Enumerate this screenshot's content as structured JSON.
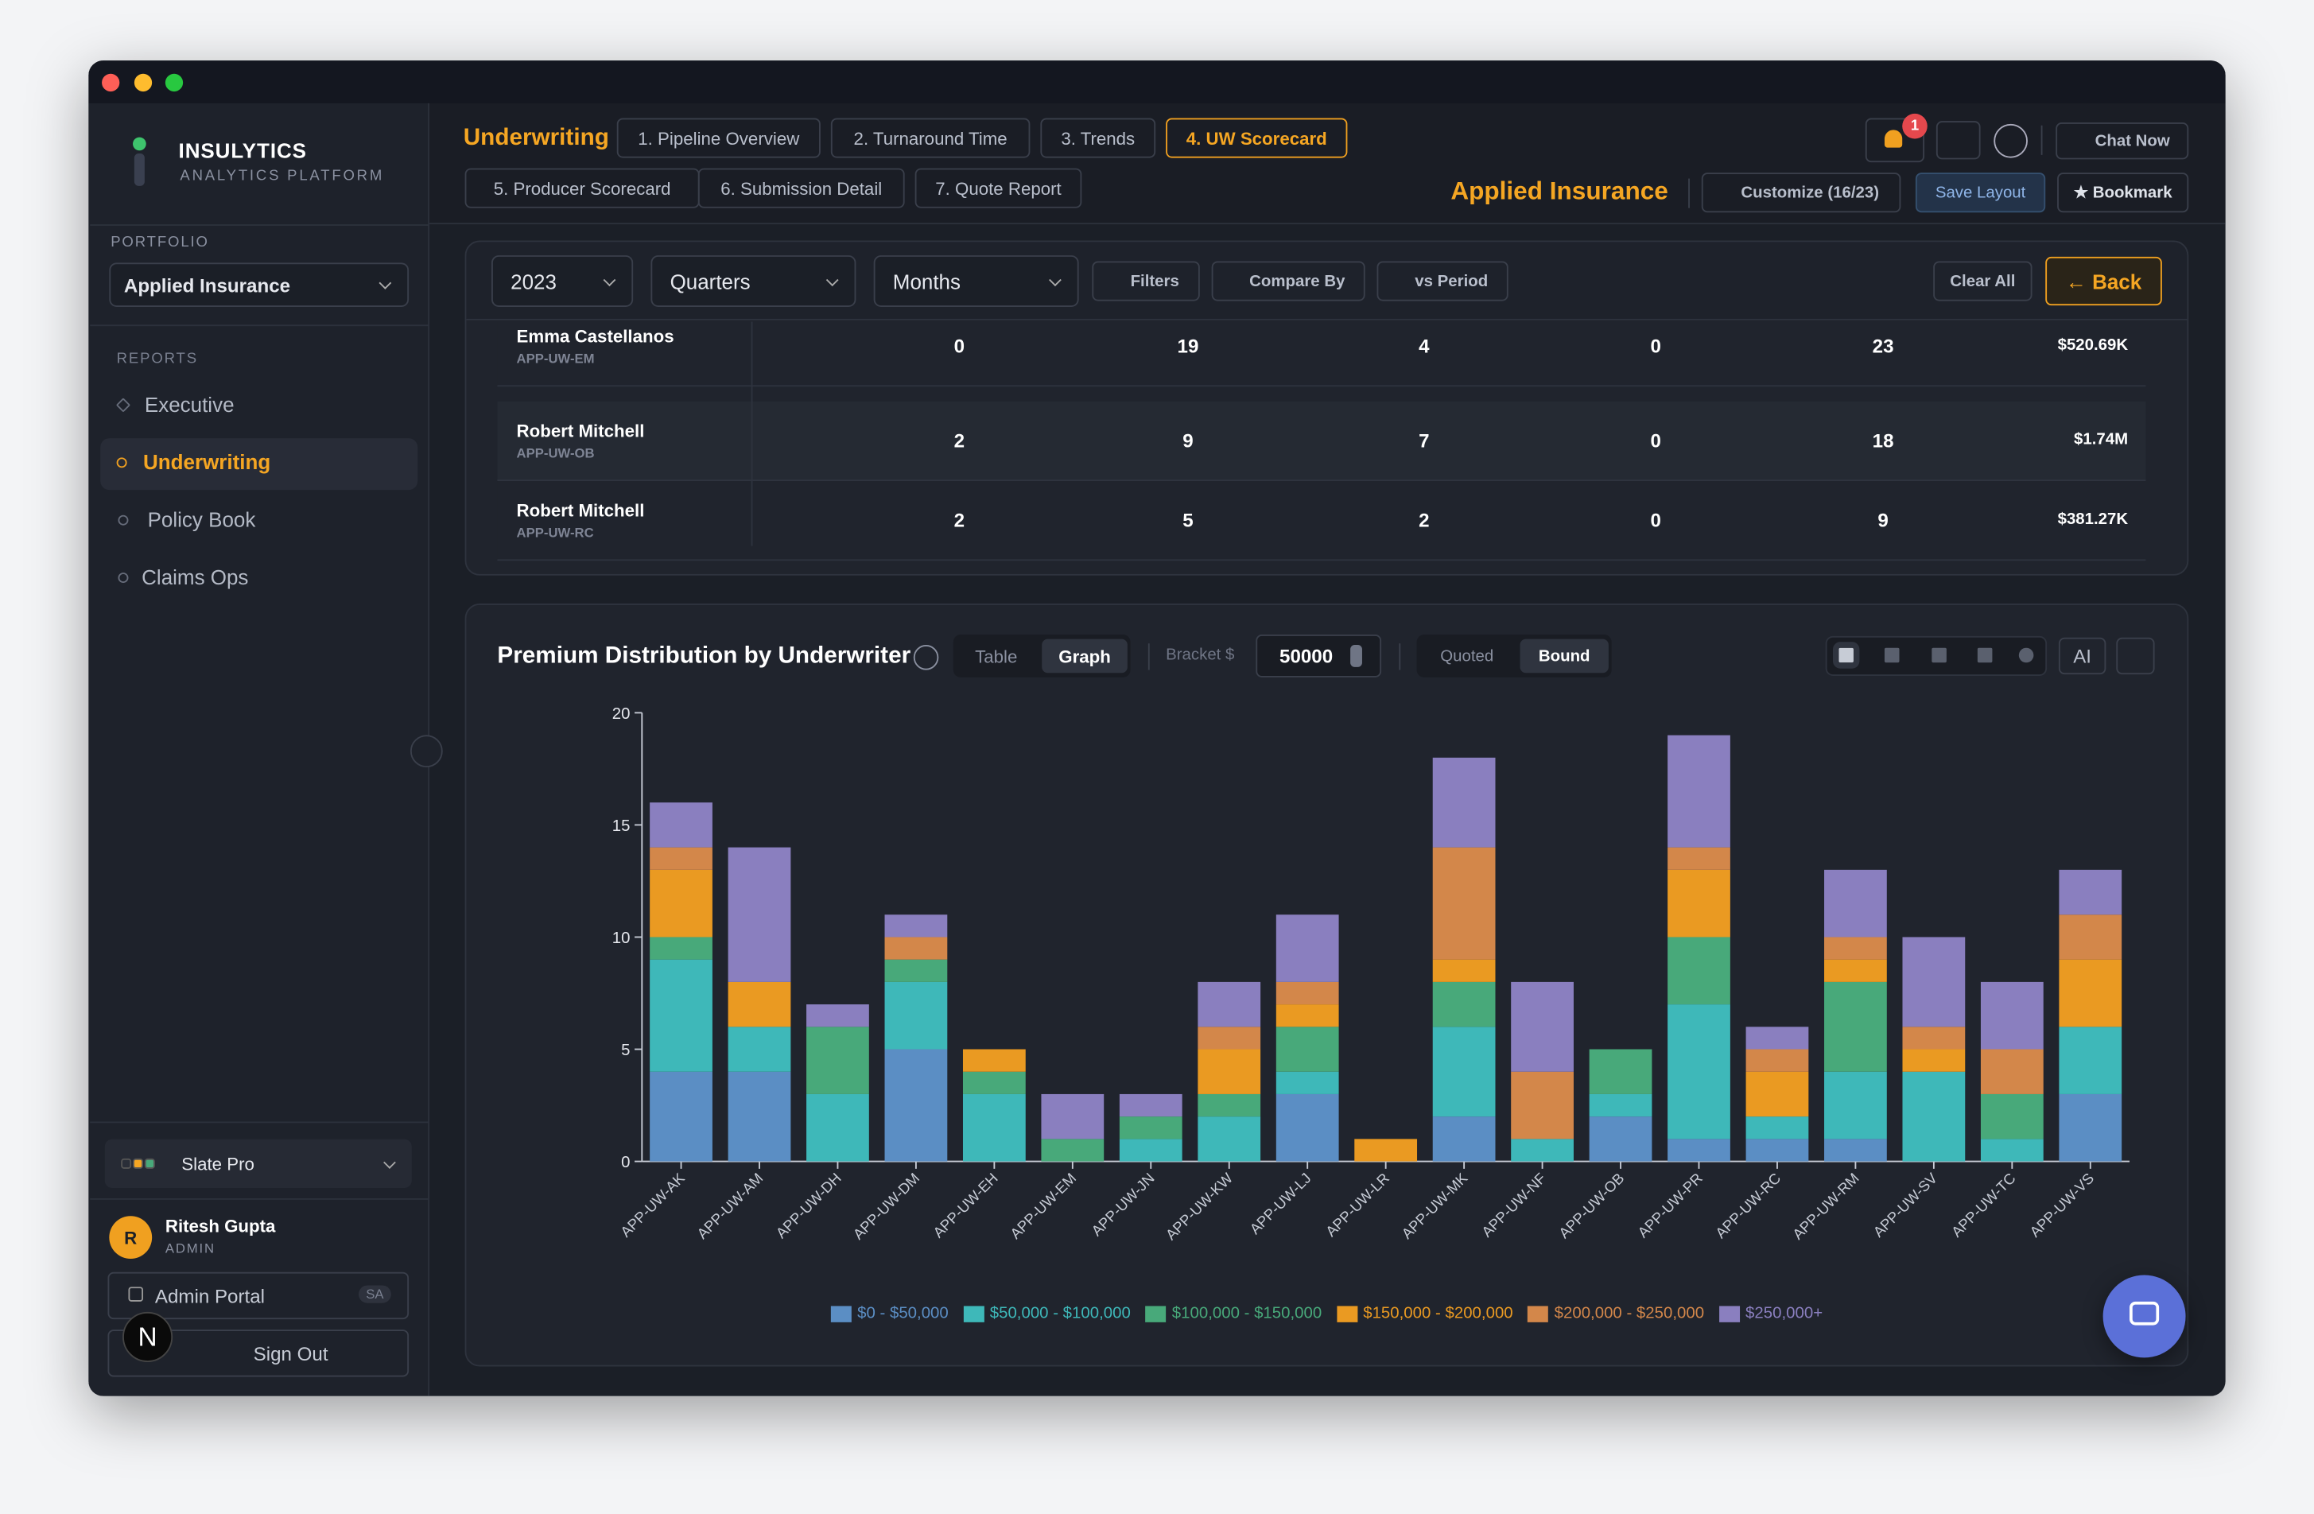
{
  "sidebar": {
    "brand": "INSULYTICS",
    "tagline": "ANALYTICS PLATFORM",
    "portfolio_label": "PORTFOLIO",
    "portfolio": "Applied Insurance",
    "reports_label": "REPORTS",
    "nav": [
      "Executive",
      "Underwriting",
      "Policy Book",
      "Claims Ops"
    ],
    "theme": "Slate Pro",
    "user": {
      "initial": "R",
      "name": "Ritesh Gupta",
      "role": "ADMIN"
    },
    "admin_portal": "Admin Portal",
    "admin_badge": "SA",
    "sign_out": "Sign Out",
    "dev_badge": "N"
  },
  "header": {
    "section": "Underwriting",
    "tabs": [
      "1. Pipeline Overview",
      "2. Turnaround Time",
      "3. Trends",
      "4. UW Scorecard",
      "5. Producer Scorecard",
      "6. Submission Detail",
      "7. Quote Report"
    ],
    "notifications": 1,
    "chat": "Chat Now",
    "company": "Applied Insurance",
    "customize": "Customize (16/23)",
    "save": "Save Layout",
    "bookmark": "★ Bookmark"
  },
  "filters": {
    "year": "2023",
    "period": "Quarters",
    "granularity": "Months",
    "filters": "Filters",
    "compare": "Compare By",
    "vs": "vs Period",
    "clear": "Clear All",
    "back": "← Back"
  },
  "table": {
    "rows": [
      [
        "Emma Castellanos",
        "APP-UW-EM",
        0,
        19,
        4,
        0,
        23,
        "$520.69K"
      ],
      [
        "Robert Mitchell",
        "APP-UW-OB",
        2,
        9,
        7,
        0,
        18,
        "$1.74M"
      ],
      [
        "Robert Mitchell",
        "APP-UW-RC",
        2,
        5,
        2,
        0,
        9,
        "$381.27K"
      ]
    ]
  },
  "panel": {
    "title": "Premium Distribution by Underwriter",
    "view_toggle": [
      "Table",
      "Graph"
    ],
    "bracket_label": "Bracket $",
    "bracket": 50000,
    "mode_toggle": [
      "Quoted",
      "Bound"
    ],
    "ai": "AI"
  },
  "chart_data": {
    "type": "bar",
    "stacked": true,
    "categories": [
      "APP-UW-AK",
      "APP-UW-AM",
      "APP-UW-DH",
      "APP-UW-DM",
      "APP-UW-EH",
      "APP-UW-EM",
      "APP-UW-JN",
      "APP-UW-KW",
      "APP-UW-LJ",
      "APP-UW-LR",
      "APP-UW-MK",
      "APP-UW-NF",
      "APP-UW-OB",
      "APP-UW-PR",
      "APP-UW-RC",
      "APP-UW-RM",
      "APP-UW-SV",
      "APP-UW-TC",
      "APP-UW-VS"
    ],
    "series": [
      {
        "name": "$0 - $50,000",
        "color": "#5b8ec4",
        "values": [
          4,
          4,
          0,
          5,
          0,
          0,
          0,
          0,
          3,
          0,
          2,
          0,
          2,
          1,
          1,
          1,
          0,
          0,
          3
        ]
      },
      {
        "name": "$50,000 - $100,000",
        "color": "#3eb8b9",
        "values": [
          5,
          2,
          3,
          3,
          3,
          0,
          1,
          2,
          1,
          0,
          4,
          1,
          1,
          6,
          1,
          3,
          4,
          1,
          3
        ]
      },
      {
        "name": "$100,000 - $150,000",
        "color": "#48a97a",
        "values": [
          1,
          0,
          3,
          1,
          1,
          1,
          1,
          1,
          2,
          0,
          2,
          0,
          2,
          3,
          0,
          4,
          0,
          2,
          0
        ]
      },
      {
        "name": "$150,000 - $200,000",
        "color": "#ea9a22",
        "values": [
          3,
          2,
          0,
          0,
          1,
          0,
          0,
          2,
          1,
          1,
          1,
          0,
          0,
          3,
          2,
          1,
          1,
          0,
          3
        ]
      },
      {
        "name": "$200,000 - $250,000",
        "color": "#d3874a",
        "values": [
          1,
          0,
          0,
          1,
          0,
          0,
          0,
          1,
          1,
          0,
          5,
          3,
          0,
          1,
          1,
          1,
          1,
          2,
          2
        ]
      },
      {
        "name": "$250,000+",
        "color": "#8a7fbf",
        "values": [
          2,
          6,
          1,
          1,
          0,
          2,
          1,
          2,
          3,
          0,
          4,
          4,
          0,
          5,
          1,
          3,
          4,
          3,
          2
        ]
      }
    ],
    "ylim": [
      0,
      20
    ],
    "yticks": [
      0,
      5,
      10,
      15,
      20
    ],
    "grid": false
  }
}
